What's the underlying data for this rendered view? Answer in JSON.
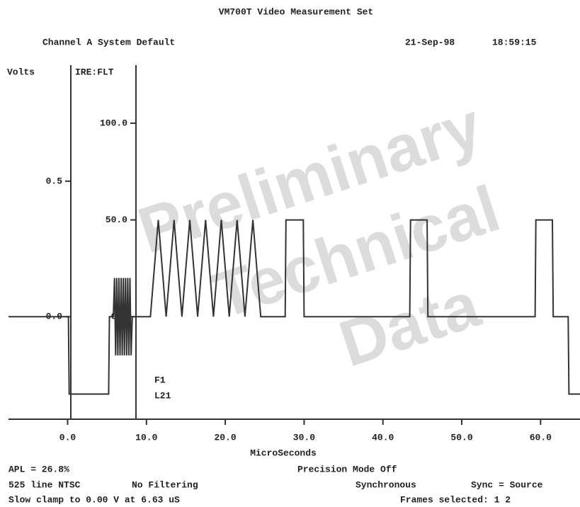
{
  "chart_data": {
    "type": "line",
    "title": "VM700T Video Measurement Set",
    "channel": "Channel A  System Default",
    "date": "21-Sep-98",
    "time": "18:59:15",
    "ylabel": "IRE:FLT",
    "y2label": "Volts",
    "xlabel": "MicroSeconds",
    "annotations": [
      "F1",
      "L21"
    ],
    "watermark": [
      "Preliminary",
      "Technical",
      "Data"
    ],
    "footer": {
      "apl": "APL =  26.8%",
      "standard": "525 line NTSC",
      "filtering": "No Filtering",
      "clamp": "Slow clamp to 0.00 V at 6.63 uS",
      "precision": "Precision Mode Off",
      "mode": "Synchronous",
      "sync": "Sync = Source",
      "frames": "Frames selected: 1 2"
    },
    "xlim": [
      -7.5,
      65
    ],
    "ylim": [
      -53,
      130
    ],
    "y2lim": [
      -0.378,
      0.928
    ],
    "xticks": [
      {
        "value": 0,
        "label": "0.0"
      },
      {
        "value": 10,
        "label": "10.0"
      },
      {
        "value": 20,
        "label": "20.0"
      },
      {
        "value": 30,
        "label": "30.0"
      },
      {
        "value": 40,
        "label": "40.0"
      },
      {
        "value": 50,
        "label": "50.0"
      },
      {
        "value": 60,
        "label": "60.0"
      }
    ],
    "yticks": [
      {
        "value": 0,
        "label": "0.0"
      },
      {
        "value": 50,
        "label": "50.0"
      },
      {
        "value": 100,
        "label": "100.0"
      }
    ],
    "y2ticks": [
      {
        "value": 0,
        "label": "0.0"
      },
      0.5
    ],
    "x": [
      -7.5,
      0.1,
      0.2,
      5.2,
      5.3,
      5.8,
      5.95,
      6.09,
      6.23,
      6.37,
      6.51,
      6.65,
      6.79,
      6.93,
      7.07,
      7.21,
      7.35,
      7.49,
      7.63,
      7.77,
      7.91,
      8.05,
      8.2,
      10.5,
      11.0,
      11.5,
      12.0,
      12.5,
      13.0,
      13.5,
      14.0,
      14.5,
      15.0,
      15.5,
      16.0,
      16.5,
      17.0,
      17.5,
      18.0,
      18.5,
      19.0,
      19.5,
      20.0,
      20.5,
      21.0,
      21.5,
      22.0,
      22.5,
      23.0,
      23.5,
      24.0,
      24.5,
      27.6,
      27.7,
      29.9,
      30.0,
      43.4,
      43.5,
      45.6,
      45.7,
      59.3,
      59.4,
      61.5,
      61.6,
      63.5,
      63.6,
      65
    ],
    "series": [
      {
        "name": "L21",
        "color": "#333333",
        "values": [
          0,
          0,
          -40,
          -40,
          0,
          0,
          20,
          -20,
          20,
          -20,
          20,
          -20,
          20,
          -20,
          20,
          -20,
          20,
          -20,
          20,
          -20,
          20,
          -20,
          0,
          0,
          25,
          50,
          25,
          0,
          25,
          50,
          25,
          0,
          25,
          50,
          25,
          0,
          25,
          50,
          25,
          0,
          25,
          50,
          25,
          0,
          25,
          50,
          25,
          0,
          25,
          50,
          25,
          0,
          0,
          50,
          50,
          0,
          0,
          50,
          50,
          0,
          0,
          50,
          50,
          0,
          0,
          -40,
          -40
        ]
      }
    ]
  }
}
